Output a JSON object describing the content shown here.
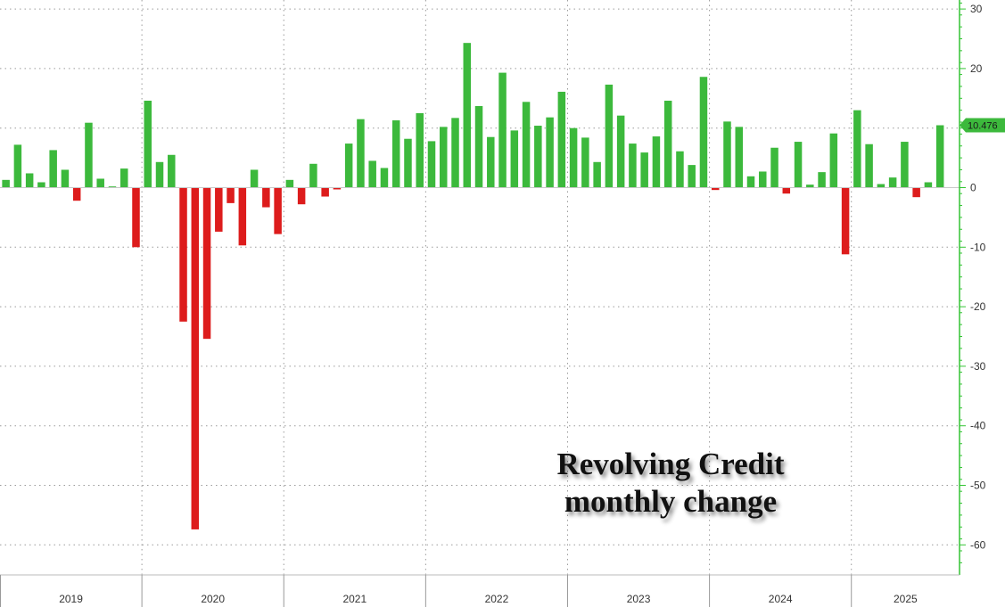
{
  "chart_data": {
    "type": "bar",
    "title": "Revolving Credit\nmonthly change",
    "title_lines": [
      "Revolving Credit",
      "monthly change"
    ],
    "start": "2019-01",
    "frequency": "monthly",
    "values": [
      1.3,
      7.2,
      2.4,
      0.9,
      6.3,
      3.0,
      -2.2,
      10.9,
      1.5,
      0.2,
      3.2,
      -10.0,
      14.6,
      4.3,
      5.5,
      -22.5,
      -57.4,
      -25.4,
      -7.4,
      -2.6,
      -9.7,
      3.0,
      -3.3,
      -7.8,
      1.3,
      -2.8,
      4.0,
      -1.5,
      -0.3,
      7.4,
      11.5,
      4.5,
      3.3,
      11.3,
      8.2,
      12.5,
      7.8,
      10.2,
      11.7,
      24.3,
      13.7,
      8.5,
      19.3,
      9.6,
      14.4,
      10.4,
      11.8,
      16.1,
      10.0,
      8.4,
      4.3,
      17.3,
      12.1,
      7.4,
      5.9,
      8.6,
      14.6,
      6.1,
      3.8,
      18.6,
      -0.4,
      11.1,
      10.2,
      1.9,
      2.7,
      6.7,
      -1.0,
      7.7,
      0.5,
      2.6,
      9.1,
      -11.2,
      13.0,
      7.3,
      0.6,
      1.7,
      7.7,
      -1.6,
      0.9,
      10.476
    ],
    "x_labels": [
      "2019",
      "2020",
      "2021",
      "2022",
      "2023",
      "2024",
      "2025"
    ],
    "y_ticks": [
      30,
      20,
      10,
      0,
      -10,
      -20,
      -30,
      -40,
      -50,
      -60
    ],
    "ylim": [
      -63,
      31
    ],
    "last_value_label": "10.476",
    "xlabel": "",
    "ylabel": "",
    "grid": true,
    "y_axis_side": "right",
    "positive_color": "#3cb93c",
    "negative_color": "#dd1c1c",
    "axis_color": "#33c433"
  }
}
